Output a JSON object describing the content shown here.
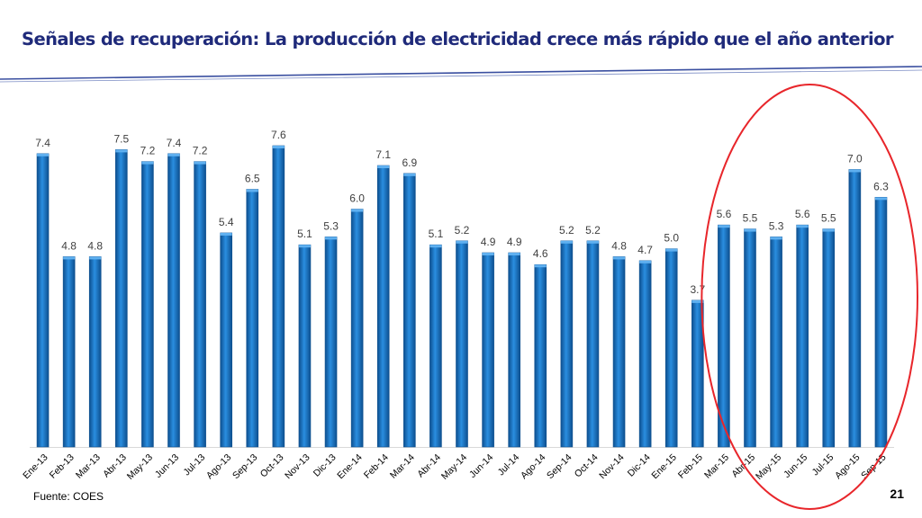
{
  "slide": {
    "title": "Señales de recuperación: La producción de electricidad crece más rápido que el año anterior",
    "source": "Fuente: COES",
    "page_number": "21"
  },
  "colors": {
    "title": "#1f2a7a",
    "bar": "#1878c8",
    "bar_dark": "#0d4f8f",
    "highlight_circle": "#e8262b",
    "rule": "#3a4fa0"
  },
  "chart_data": {
    "type": "bar",
    "categories": [
      "Ene-13",
      "Feb-13",
      "Mar-13",
      "Abr-13",
      "May-13",
      "Jun-13",
      "Jul-13",
      "Ago-13",
      "Sep-13",
      "Oct-13",
      "Nov-13",
      "Dic-13",
      "Ene-14",
      "Feb-14",
      "Mar-14",
      "Abr-14",
      "May-14",
      "Jun-14",
      "Jul-14",
      "Ago-14",
      "Sep-14",
      "Oct-14",
      "Nov-14",
      "Dic-14",
      "Ene-15",
      "Feb-15",
      "Mar-15",
      "Abr-15",
      "May-15",
      "Jun-15",
      "Jul-15",
      "Ago-15",
      "Sep-15"
    ],
    "values": [
      7.4,
      4.8,
      4.8,
      7.5,
      7.2,
      7.4,
      7.2,
      5.4,
      6.5,
      7.6,
      5.1,
      5.3,
      6.0,
      7.1,
      6.9,
      5.1,
      5.2,
      4.9,
      4.9,
      4.6,
      5.2,
      5.2,
      4.8,
      4.7,
      5.0,
      3.7,
      5.6,
      5.5,
      5.3,
      5.6,
      5.5,
      7.0,
      6.3
    ],
    "data_labels": [
      "7.4",
      "4.8",
      "4.8",
      "7.5",
      "7.2",
      "7.4",
      "7.2",
      "5.4",
      "6.5",
      "7.6",
      "5.1",
      "5.3",
      "6.0",
      "7.1",
      "6.9",
      "5.1",
      "5.2",
      "4.9",
      "4.9",
      "4.6",
      "5.2",
      "5.2",
      "4.8",
      "4.7",
      "5.0",
      "3.7",
      "5.6",
      "5.5",
      "5.3",
      "5.6",
      "5.5",
      "7.0",
      "6.3"
    ],
    "ylim": [
      0,
      7.6
    ],
    "grid": false,
    "legend": "none",
    "highlight": {
      "shape": "ellipse",
      "from_category": "Mar-15",
      "to_category": "Sep-15"
    }
  }
}
